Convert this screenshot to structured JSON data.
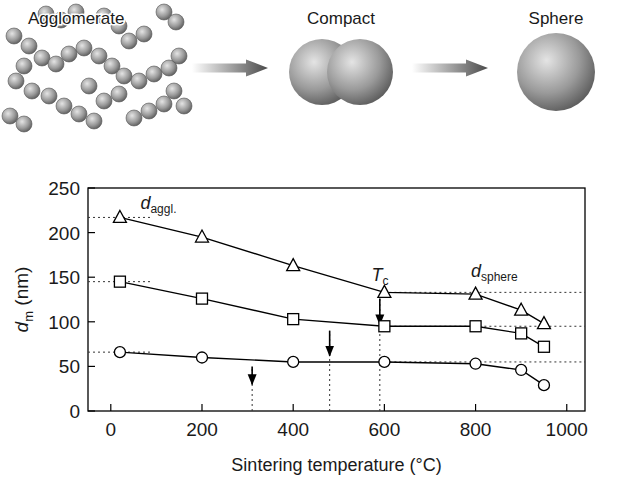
{
  "schematic": {
    "labels": [
      "Agglomerate",
      "Compact",
      "Sphere"
    ]
  },
  "chart_data": {
    "type": "line",
    "x_label": "Sintering temperature (°C)",
    "y_label": {
      "text": "d",
      "sub": "m",
      "unit": " (nm)"
    },
    "x": [
      20,
      200,
      400,
      600,
      800,
      900,
      950
    ],
    "series": [
      {
        "color": "#000000",
        "marker": "triangle",
        "values": [
          217,
          195,
          163,
          133,
          131,
          113,
          98
        ]
      },
      {
        "color": "#000000",
        "marker": "square",
        "values": [
          145,
          126,
          103,
          95,
          95,
          87,
          72
        ]
      },
      {
        "color": "#000000",
        "marker": "circle",
        "values": [
          66,
          60,
          55,
          55,
          53,
          46,
          29
        ]
      }
    ],
    "xlim": [
      -50,
      1040
    ],
    "xticks": [
      0,
      200,
      400,
      600,
      800,
      1000
    ],
    "ylim": [
      0,
      250
    ],
    "yticks": [
      0,
      50,
      100,
      150,
      200,
      250
    ],
    "grid": false,
    "annotations": [
      {
        "text": "d",
        "sub": "aggl.",
        "x": 65,
        "y": 226
      },
      {
        "text": "T",
        "sub": "c",
        "x": 572,
        "y": 146
      },
      {
        "text": "d",
        "sub": "sphere",
        "x": 790,
        "y": 150
      }
    ],
    "arrows": [
      {
        "x": 310,
        "y_from": 50,
        "y_to": 30
      },
      {
        "x": 480,
        "y_from": 90,
        "y_to": 62
      },
      {
        "x": 590,
        "y_from": 126,
        "y_to": 97
      }
    ],
    "reference_lines": [
      {
        "y": 217,
        "x_from": -50,
        "x_to": 90
      },
      {
        "y": 145,
        "x_from": -50,
        "x_to": 90
      },
      {
        "y": 66,
        "x_from": -50,
        "x_to": 90
      },
      {
        "y": 133,
        "x_from": 600,
        "x_to": 1040
      },
      {
        "y": 95,
        "x_from": 600,
        "x_to": 1040
      },
      {
        "y": 55,
        "x_from": 600,
        "x_to": 1040
      }
    ]
  }
}
